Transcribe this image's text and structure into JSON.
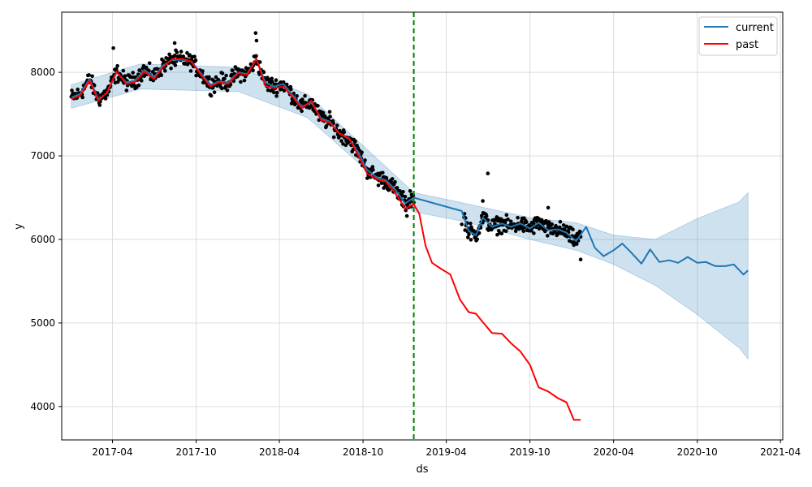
{
  "chart_data": {
    "type": "line",
    "title": "",
    "xlabel": "ds",
    "ylabel": "y",
    "xlim": [
      "2016-12-11",
      "2021-04-06"
    ],
    "ylim": [
      3600,
      8720
    ],
    "grid": true,
    "legend_position": "top-right",
    "x_ticks": [
      "2017-04",
      "2017-10",
      "2018-04",
      "2018-10",
      "2019-04",
      "2019-10",
      "2020-04",
      "2020-10",
      "2021-04"
    ],
    "y_ticks": [
      4000,
      5000,
      6000,
      7000,
      8000
    ],
    "cutoff_date": "2019-01-20",
    "colors": {
      "current": "#1f77b4",
      "past": "#ff0000",
      "band": "#1f77b4",
      "points": "#000000",
      "cutoff": "#008000"
    },
    "series": [
      {
        "name": "current",
        "points": [
          [
            "2017-01-01",
            7700
          ],
          [
            "2017-01-20",
            7740
          ],
          [
            "2017-02-10",
            7920
          ],
          [
            "2017-03-01",
            7680
          ],
          [
            "2017-03-20",
            7750
          ],
          [
            "2017-04-10",
            8000
          ],
          [
            "2017-05-01",
            7880
          ],
          [
            "2017-05-20",
            7900
          ],
          [
            "2017-06-10",
            8030
          ],
          [
            "2017-07-01",
            7940
          ],
          [
            "2017-07-20",
            8080
          ],
          [
            "2017-08-10",
            8150
          ],
          [
            "2017-09-01",
            8150
          ],
          [
            "2017-09-20",
            8130
          ],
          [
            "2017-10-10",
            8000
          ],
          [
            "2017-11-01",
            7850
          ],
          [
            "2017-11-20",
            7890
          ],
          [
            "2017-12-10",
            7880
          ],
          [
            "2018-01-01",
            8000
          ],
          [
            "2018-01-20",
            7980
          ],
          [
            "2018-02-10",
            8160
          ],
          [
            "2018-03-01",
            7880
          ],
          [
            "2018-03-20",
            7830
          ],
          [
            "2018-04-10",
            7860
          ],
          [
            "2018-05-01",
            7720
          ],
          [
            "2018-05-20",
            7590
          ],
          [
            "2018-06-10",
            7640
          ],
          [
            "2018-07-01",
            7450
          ],
          [
            "2018-07-20",
            7410
          ],
          [
            "2018-08-10",
            7270
          ],
          [
            "2018-09-01",
            7200
          ],
          [
            "2018-09-20",
            7050
          ],
          [
            "2018-10-10",
            6830
          ],
          [
            "2018-11-01",
            6740
          ],
          [
            "2018-11-20",
            6710
          ],
          [
            "2018-12-10",
            6600
          ],
          [
            "2019-01-01",
            6430
          ],
          [
            "2019-01-20",
            6500
          ],
          [
            "2019-05-05",
            6340
          ],
          [
            "2019-05-20",
            6100
          ],
          [
            "2019-06-05",
            6050
          ],
          [
            "2019-06-20",
            6260
          ],
          [
            "2019-07-10",
            6150
          ],
          [
            "2019-08-01",
            6190
          ],
          [
            "2019-08-20",
            6150
          ],
          [
            "2019-09-10",
            6190
          ],
          [
            "2019-10-01",
            6130
          ],
          [
            "2019-10-20",
            6200
          ],
          [
            "2019-11-10",
            6110
          ],
          [
            "2019-12-01",
            6120
          ],
          [
            "2019-12-20",
            6080
          ],
          [
            "2020-01-10",
            5980
          ],
          [
            "2020-02-01",
            6150
          ],
          [
            "2020-02-20",
            5900
          ],
          [
            "2020-03-10",
            5800
          ],
          [
            "2020-04-01",
            5870
          ],
          [
            "2020-04-20",
            5950
          ],
          [
            "2020-05-10",
            5840
          ],
          [
            "2020-06-01",
            5710
          ],
          [
            "2020-06-20",
            5880
          ],
          [
            "2020-07-10",
            5730
          ],
          [
            "2020-08-01",
            5750
          ],
          [
            "2020-08-20",
            5720
          ],
          [
            "2020-09-10",
            5790
          ],
          [
            "2020-10-01",
            5720
          ],
          [
            "2020-10-20",
            5730
          ],
          [
            "2020-11-10",
            5680
          ],
          [
            "2020-12-01",
            5680
          ],
          [
            "2020-12-20",
            5700
          ],
          [
            "2021-01-10",
            5580
          ],
          [
            "2021-01-20",
            5630
          ]
        ]
      },
      {
        "name": "past",
        "points": [
          [
            "2017-01-01",
            7680
          ],
          [
            "2017-01-20",
            7720
          ],
          [
            "2017-02-10",
            7900
          ],
          [
            "2017-03-01",
            7660
          ],
          [
            "2017-03-20",
            7760
          ],
          [
            "2017-04-10",
            8010
          ],
          [
            "2017-05-01",
            7860
          ],
          [
            "2017-05-20",
            7880
          ],
          [
            "2017-06-10",
            8010
          ],
          [
            "2017-07-01",
            7920
          ],
          [
            "2017-07-20",
            8060
          ],
          [
            "2017-08-10",
            8160
          ],
          [
            "2017-09-01",
            8160
          ],
          [
            "2017-09-20",
            8130
          ],
          [
            "2017-10-10",
            7980
          ],
          [
            "2017-11-01",
            7830
          ],
          [
            "2017-11-20",
            7880
          ],
          [
            "2017-12-10",
            7860
          ],
          [
            "2018-01-01",
            7990
          ],
          [
            "2018-01-20",
            7970
          ],
          [
            "2018-02-10",
            8160
          ],
          [
            "2018-03-01",
            7840
          ],
          [
            "2018-03-20",
            7810
          ],
          [
            "2018-04-10",
            7830
          ],
          [
            "2018-05-01",
            7700
          ],
          [
            "2018-05-20",
            7570
          ],
          [
            "2018-06-10",
            7660
          ],
          [
            "2018-07-01",
            7430
          ],
          [
            "2018-07-20",
            7400
          ],
          [
            "2018-08-10",
            7270
          ],
          [
            "2018-09-01",
            7210
          ],
          [
            "2018-09-20",
            7010
          ],
          [
            "2018-10-10",
            6790
          ],
          [
            "2018-11-01",
            6720
          ],
          [
            "2018-11-20",
            6690
          ],
          [
            "2018-12-10",
            6560
          ],
          [
            "2019-01-01",
            6370
          ],
          [
            "2019-01-20",
            6420
          ],
          [
            "2019-02-01",
            6310
          ],
          [
            "2019-02-15",
            5920
          ],
          [
            "2019-03-01",
            5720
          ],
          [
            "2019-03-20",
            5650
          ],
          [
            "2019-04-10",
            5580
          ],
          [
            "2019-05-01",
            5280
          ],
          [
            "2019-05-20",
            5130
          ],
          [
            "2019-06-05",
            5110
          ],
          [
            "2019-06-20",
            5010
          ],
          [
            "2019-07-10",
            4880
          ],
          [
            "2019-08-01",
            4870
          ],
          [
            "2019-08-20",
            4760
          ],
          [
            "2019-09-10",
            4660
          ],
          [
            "2019-10-01",
            4500
          ],
          [
            "2019-10-20",
            4230
          ],
          [
            "2019-11-10",
            4180
          ],
          [
            "2019-12-01",
            4100
          ],
          [
            "2019-12-20",
            4050
          ],
          [
            "2020-01-05",
            3840
          ],
          [
            "2020-01-20",
            3840
          ]
        ]
      }
    ],
    "uncertainty_band": {
      "x": [
        "2017-01-01",
        "2017-06-01",
        "2018-01-01",
        "2018-06-01",
        "2019-01-20",
        "2019-05-05",
        "2019-10-01",
        "2020-01-10",
        "2020-04-01",
        "2020-07-01",
        "2020-10-01",
        "2021-01-01",
        "2021-01-20"
      ],
      "upper": [
        7850,
        8100,
        8060,
        7740,
        6560,
        6440,
        6260,
        6200,
        6050,
        6000,
        6250,
        6450,
        6560
      ],
      "lower": [
        7570,
        7800,
        7770,
        7460,
        6330,
        6220,
        6000,
        5870,
        5700,
        5450,
        5100,
        4700,
        4570
      ]
    },
    "observations": {
      "segments": [
        {
          "start": "2017-01-01",
          "end": "2019-01-20",
          "count": 640
        },
        {
          "start": "2019-05-10",
          "end": "2020-01-20",
          "count": 240
        }
      ],
      "outliers": [
        [
          "2017-04-03",
          8290
        ],
        [
          "2017-08-15",
          8350
        ],
        [
          "2018-02-08",
          8470
        ],
        [
          "2018-02-10",
          8380
        ],
        [
          "2019-07-01",
          6790
        ],
        [
          "2019-06-20",
          6460
        ],
        [
          "2019-11-10",
          6380
        ],
        [
          "2019-05-05",
          6180
        ],
        [
          "2019-01-12",
          6580
        ],
        [
          "2019-01-05",
          6280
        ],
        [
          "2020-01-20",
          5760
        ]
      ]
    }
  }
}
